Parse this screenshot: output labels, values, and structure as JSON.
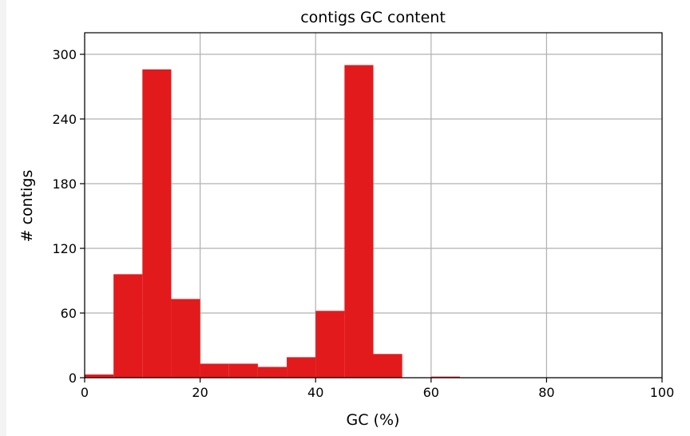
{
  "chart_data": {
    "type": "bar",
    "title": "contigs GC content",
    "xlabel": "GC (%)",
    "ylabel": "# contigs",
    "xlim": [
      0,
      100
    ],
    "ylim": [
      0,
      320
    ],
    "xticks": [
      0,
      20,
      40,
      60,
      80,
      100
    ],
    "yticks": [
      0,
      60,
      120,
      180,
      240,
      300
    ],
    "grid": true,
    "bar_color": "#e31a1c",
    "bins": [
      {
        "x0": 0,
        "x1": 5,
        "value": 3
      },
      {
        "x0": 5,
        "x1": 10,
        "value": 96
      },
      {
        "x0": 10,
        "x1": 15,
        "value": 286
      },
      {
        "x0": 15,
        "x1": 20,
        "value": 73
      },
      {
        "x0": 20,
        "x1": 25,
        "value": 13
      },
      {
        "x0": 25,
        "x1": 30,
        "value": 13
      },
      {
        "x0": 30,
        "x1": 35,
        "value": 10
      },
      {
        "x0": 35,
        "x1": 40,
        "value": 19
      },
      {
        "x0": 40,
        "x1": 45,
        "value": 62
      },
      {
        "x0": 45,
        "x1": 50,
        "value": 290
      },
      {
        "x0": 50,
        "x1": 55,
        "value": 22
      },
      {
        "x0": 55,
        "x1": 60,
        "value": 0
      },
      {
        "x0": 60,
        "x1": 65,
        "value": 1
      }
    ]
  }
}
